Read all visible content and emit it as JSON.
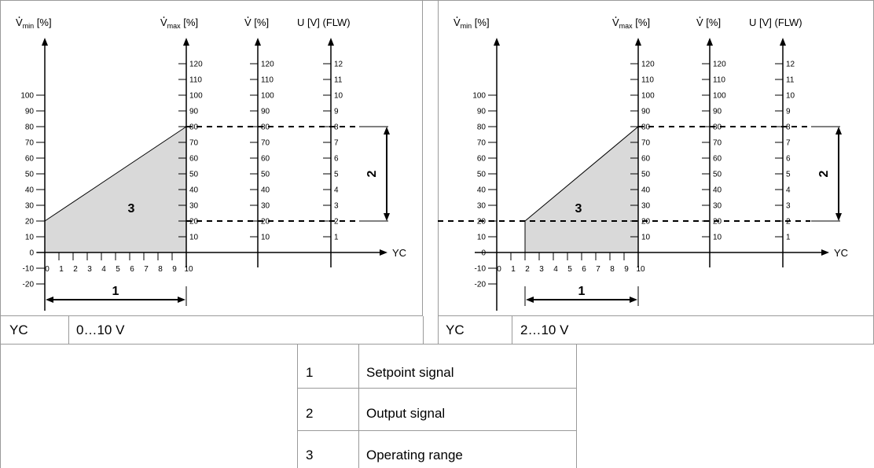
{
  "panels": [
    {
      "axes": {
        "vmin": {
          "base": "V",
          "sub": "min",
          "unit": "[%]"
        },
        "vmax": {
          "base": "V",
          "sub": "max",
          "unit": "[%]"
        },
        "v": {
          "base": "V",
          "unit": "[%]"
        },
        "u": {
          "label": "U [V] (FLW)"
        },
        "x_label": "YC"
      },
      "vmin_ticks": [
        "100",
        "90",
        "80",
        "70",
        "60",
        "50",
        "40",
        "30",
        "20",
        "10",
        "0",
        "-10",
        "-20"
      ],
      "x_ticks": [
        "0",
        "1",
        "2",
        "3",
        "4",
        "5",
        "6",
        "7",
        "8",
        "9",
        "10"
      ],
      "vmax_ticks": [
        "120",
        "110",
        "100",
        "90",
        "80",
        "70",
        "60",
        "50",
        "40",
        "30",
        "20",
        "10"
      ],
      "v_ticks": [
        "120",
        "110",
        "100",
        "90",
        "80",
        "70",
        "60",
        "50",
        "40",
        "30",
        "20",
        "10"
      ],
      "u_ticks": [
        "12",
        "11",
        "10",
        "9",
        "8",
        "7",
        "6",
        "5",
        "4",
        "3",
        "2",
        "1"
      ],
      "operating_range": {
        "yc_start": 0,
        "vmin_at_start": 20,
        "yc_end": 10,
        "vmax_at_end": 80
      },
      "callouts": {
        "setpoint": "1",
        "output": "2",
        "range": "3"
      },
      "yc_label": "YC",
      "yc_value": "0…10 V"
    },
    {
      "axes": {
        "vmin": {
          "base": "V",
          "sub": "min",
          "unit": "[%]"
        },
        "vmax": {
          "base": "V",
          "sub": "max",
          "unit": "[%]"
        },
        "v": {
          "base": "V",
          "unit": "[%]"
        },
        "u": {
          "label": "U [V] (FLW)"
        },
        "x_label": "YC"
      },
      "vmin_ticks": [
        "100",
        "90",
        "80",
        "70",
        "60",
        "50",
        "40",
        "30",
        "20",
        "10",
        "0",
        "-10",
        "-20"
      ],
      "x_ticks": [
        "0",
        "1",
        "2",
        "3",
        "4",
        "5",
        "6",
        "7",
        "8",
        "9",
        "10"
      ],
      "vmax_ticks": [
        "120",
        "110",
        "100",
        "90",
        "80",
        "70",
        "60",
        "50",
        "40",
        "30",
        "20",
        "10"
      ],
      "v_ticks": [
        "120",
        "110",
        "100",
        "90",
        "80",
        "70",
        "60",
        "50",
        "40",
        "30",
        "20",
        "10"
      ],
      "u_ticks": [
        "12",
        "11",
        "10",
        "9",
        "8",
        "7",
        "6",
        "5",
        "4",
        "3",
        "2",
        "1"
      ],
      "operating_range": {
        "yc_start": 2,
        "vmin_at_start": 20,
        "yc_end": 10,
        "vmax_at_end": 80
      },
      "callouts": {
        "setpoint": "1",
        "output": "2",
        "range": "3"
      },
      "yc_label": "YC",
      "yc_value": "2…10 V"
    }
  ],
  "legend": [
    {
      "num": "1",
      "text": "Setpoint signal"
    },
    {
      "num": "2",
      "text": "Output signal"
    },
    {
      "num": "3",
      "text": "Operating range"
    }
  ],
  "colors": {
    "fill": "#d9d9d9",
    "line": "#000000",
    "border": "#9a9a9a"
  }
}
